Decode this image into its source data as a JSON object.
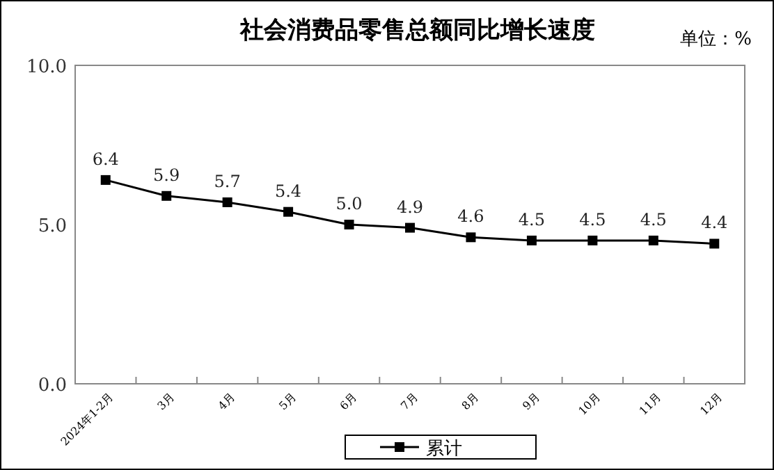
{
  "chart_data": {
    "type": "line",
    "title": "社会消费品零售总额同比增长速度",
    "annotations": [
      "单位：%"
    ],
    "categories": [
      "2024年1-2月",
      "3月",
      "4月",
      "5月",
      "6月",
      "7月",
      "8月",
      "9月",
      "10月",
      "11月",
      "12月"
    ],
    "series": [
      {
        "name": "累计",
        "color": "#000000",
        "values": [
          6.4,
          5.9,
          5.7,
          5.4,
          5.0,
          4.9,
          4.6,
          4.5,
          4.5,
          4.5,
          4.4
        ],
        "value_labels": [
          "6.4",
          "5.9",
          "5.7",
          "5.4",
          "5.0",
          "4.9",
          "4.6",
          "4.5",
          "4.5",
          "4.5",
          "4.4"
        ]
      }
    ],
    "ylim": [
      0,
      10
    ],
    "yticks": [
      {
        "value": 0,
        "label": "0.0"
      },
      {
        "value": 5,
        "label": "5.0"
      },
      {
        "value": 10,
        "label": "10.0"
      }
    ],
    "marker": "square",
    "line_style": "solid",
    "legend": "bottom"
  }
}
